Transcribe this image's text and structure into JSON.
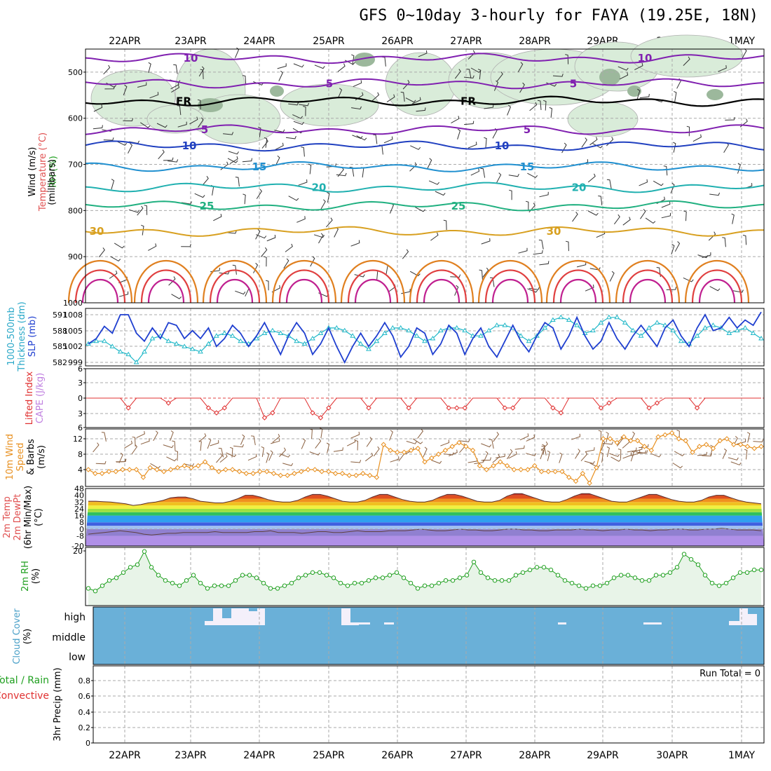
{
  "title": "GFS 0~10day 3-hourly for FAYA (19.25E, 18N)",
  "date_labels": [
    "22APR",
    "23APR",
    "24APR",
    "25APR",
    "26APR",
    "27APR",
    "28APR",
    "29APR",
    "30APR",
    "1MAY"
  ],
  "colors": {
    "rh_fill": "#d9ecd9",
    "rh_dark": "#9cb89c",
    "slp": "#1f3fd0",
    "thickness": "#20b8c8",
    "lifted_index": "#e03030",
    "cape": "#c080e0",
    "wind10m": "#e89020",
    "barbs10m": "#8a6040",
    "temp_max": "#5a3a30",
    "rh2m": "#20a020",
    "rh2m_fill": "#e8f4e8",
    "cloud": "#6ab0d8",
    "cloud_gap": "#f4f0fa",
    "grid": "#aaaaaa"
  },
  "chart_data": [
    {
      "type": "contour",
      "panel": "upper-air",
      "ylabels": [
        "Wind (m/s)",
        "Temperature (°C)",
        "RH (%)",
        "(millibars)"
      ],
      "yticks": [
        500,
        600,
        700,
        800,
        900,
        1000
      ],
      "ylim": [
        1000,
        450
      ],
      "isotherms": [
        {
          "label": "10",
          "value": -10,
          "level": 470,
          "color": "#8020b0"
        },
        {
          "label": "5",
          "value": -5,
          "level": 525,
          "color": "#8020b0"
        },
        {
          "label": "FR",
          "value": 0,
          "level": 563,
          "color": "#000000"
        },
        {
          "label": "5",
          "value": 5,
          "level": 625,
          "color": "#8020b0"
        },
        {
          "label": "10",
          "value": 10,
          "level": 660,
          "color": "#2040c0"
        },
        {
          "label": "15",
          "value": 15,
          "level": 705,
          "color": "#2090d0"
        },
        {
          "label": "20",
          "value": 20,
          "level": 750,
          "color": "#20b0b0"
        },
        {
          "label": "25",
          "value": 25,
          "level": 790,
          "color": "#20b080"
        },
        {
          "label": "30",
          "value": 30,
          "level": 845,
          "color": "#d8a020"
        }
      ]
    },
    {
      "type": "line",
      "panel": "thickness-slp",
      "ylabels": [
        "1000-500mb",
        "Thickness (dm)",
        "SLP (mb)"
      ],
      "left_ticks": [
        "591",
        "588",
        "585",
        "582"
      ],
      "right_ticks": [
        "1008",
        "1005",
        "1002",
        "999"
      ],
      "series": [
        {
          "name": "SLP (mb)",
          "values": [
            1002.5,
            1003.5,
            1005.8,
            1004.5,
            1008,
            1008,
            1004.5,
            1003,
            1005.5,
            1003.5,
            1006.5,
            1006,
            1003.5,
            1005,
            1003.5,
            1005.5,
            1002,
            1003.5,
            1006,
            1004.5,
            1002,
            1004,
            1006.5,
            1003.5,
            1000.5,
            1004,
            1006.5,
            1004.5,
            1000.5,
            1002.5,
            1005.5,
            1002,
            999,
            1002,
            1004.5,
            1002,
            1004,
            1006.5,
            1004,
            1000,
            1002,
            1005.5,
            1004.5,
            1000.5,
            1002.5,
            1006,
            1004.5,
            1000.5,
            1003.5,
            1005.5,
            1002,
            1000,
            1003,
            1006,
            1003,
            1001,
            1004,
            1006.5,
            1005.5,
            1001.5,
            1004,
            1007.5,
            1004,
            1001.5,
            1003,
            1006.5,
            1003.5,
            1001.5,
            1004,
            1006,
            1004,
            1002,
            1005.5,
            1007,
            1004,
            1002,
            1005.5,
            1008,
            1005,
            1005.5,
            1007.5,
            1005.5,
            1007,
            1006,
            1008.5
          ]
        },
        {
          "name": "Thickness (dm)",
          "values": [
            585.5,
            586,
            586,
            585,
            584,
            583.5,
            582,
            584,
            586.5,
            587,
            586,
            585.5,
            585,
            584.5,
            584,
            585.5,
            587,
            587.5,
            587,
            586,
            585.5,
            586.5,
            587.5,
            588,
            587.5,
            587,
            586,
            585.5,
            586.5,
            587.5,
            588.5,
            588.5,
            588,
            587,
            585.5,
            584.5,
            586,
            587.5,
            588.5,
            588.5,
            588,
            587,
            586,
            586.5,
            588,
            588.5,
            588.5,
            588,
            587,
            587,
            588,
            589,
            589,
            588.5,
            587,
            586,
            587,
            588.5,
            590,
            590.5,
            590,
            589,
            587.5,
            588,
            589.5,
            590.5,
            590.5,
            589.5,
            588,
            587,
            588.5,
            589.5,
            589,
            588,
            586,
            585.5,
            587,
            588.5,
            589,
            588.5,
            587.5,
            588,
            588.5,
            587.5,
            586.5
          ]
        }
      ]
    },
    {
      "type": "line",
      "panel": "stability",
      "ylabels": [
        "Lifted Index",
        "CAPE (J/kg)"
      ],
      "left_ticks": [
        "6",
        "3",
        "0",
        "3",
        "6"
      ],
      "series": [
        {
          "name": "Lifted Index",
          "values": [
            6,
            6,
            6,
            6,
            6,
            4,
            6,
            6,
            6,
            6,
            5,
            6,
            6,
            6,
            6,
            4,
            3,
            4,
            6,
            6,
            6,
            6,
            2,
            3,
            6,
            6,
            6,
            6,
            3,
            2,
            4,
            6,
            6,
            6,
            6,
            4,
            6,
            6,
            6,
            6,
            4,
            6,
            6,
            6,
            6,
            4,
            4,
            4,
            6,
            6,
            6,
            6,
            4,
            4,
            6,
            6,
            6,
            6,
            4,
            3,
            6,
            6,
            6,
            6,
            4,
            5,
            6,
            6,
            6,
            6,
            4,
            5,
            6,
            6,
            6,
            6,
            4,
            6,
            6,
            6,
            6,
            6,
            6,
            6,
            6
          ]
        }
      ]
    },
    {
      "type": "line",
      "panel": "wind10m",
      "ylabels": [
        "10m Wind",
        "Speed",
        "& Barbs",
        "(m/s)"
      ],
      "left_ticks": [
        "12",
        "8",
        "4"
      ],
      "series": [
        {
          "name": "10m Wind Speed",
          "values": [
            4,
            3,
            3,
            3.5,
            3.5,
            4,
            4,
            4,
            2,
            4.5,
            4,
            3.5,
            4,
            4.5,
            5,
            4.5,
            5,
            6,
            4.5,
            3.5,
            4,
            4,
            3.5,
            3,
            3,
            3.5,
            3.5,
            3,
            2.5,
            2.5,
            3,
            3.5,
            4,
            4,
            3.5,
            3.5,
            3,
            3,
            2.5,
            2.5,
            3,
            2.5,
            2,
            10.5,
            9,
            8.5,
            8.5,
            9,
            9.5,
            6,
            7,
            8,
            9,
            10,
            11,
            10,
            9,
            5,
            4,
            5,
            6,
            5,
            4,
            4,
            4,
            5,
            3.5,
            3.5,
            3.5,
            3.5,
            2,
            1,
            3,
            0.5,
            4.5,
            12,
            12,
            11,
            12.5,
            11.5,
            11.5,
            10,
            9,
            12.5,
            13,
            13.5,
            12,
            11.5,
            8.5,
            10,
            10.5,
            9.5,
            11.5,
            12,
            10.5,
            10.5,
            10,
            9.5,
            10
          ]
        }
      ]
    },
    {
      "type": "area",
      "panel": "temperature",
      "ylabels": [
        "2m Temp",
        "2m DewPt",
        "(6hr Min/Max)",
        "(°C)"
      ],
      "left_ticks": [
        "48",
        "40",
        "32",
        "24",
        "16",
        "8",
        "0",
        "-8",
        "-20"
      ],
      "series": [
        {
          "name": "2m Temp",
          "values": [
            33,
            33,
            32.5,
            32,
            31,
            30,
            28,
            29,
            31,
            32,
            34,
            37,
            38,
            38,
            36,
            33,
            32,
            31,
            31,
            33,
            36,
            40,
            40,
            38,
            35,
            33,
            32,
            32,
            34,
            38,
            41,
            41,
            39,
            36,
            33,
            32,
            32,
            34,
            38,
            41,
            41,
            38,
            35,
            33,
            32,
            32,
            34,
            38,
            41,
            41,
            39,
            36,
            33,
            32,
            32,
            34,
            39,
            42,
            42,
            39,
            36,
            33,
            32,
            32,
            35,
            39,
            42,
            42,
            39,
            36,
            33,
            32,
            32,
            35,
            38,
            41,
            41,
            38,
            35,
            33,
            32,
            32,
            34,
            38,
            40,
            40,
            37,
            34,
            32,
            31,
            30
          ]
        },
        {
          "name": "2m DewPt",
          "values": [
            -6,
            -5,
            -4,
            -3,
            -2,
            -3,
            -4,
            -6,
            -7,
            -6,
            -5,
            -5,
            -4,
            -4,
            -4,
            -4,
            -3,
            -4,
            -4,
            -4,
            -4,
            -3,
            -3,
            -2,
            -4,
            -4,
            -4,
            -5,
            -4,
            -3,
            -3,
            -4,
            -4,
            -3,
            -2,
            -3,
            -3,
            -3,
            -2,
            -2,
            -2,
            -1,
            0,
            -1,
            -2,
            -2,
            -1,
            0,
            -1,
            -1,
            -2,
            -2,
            -1,
            0,
            0,
            -1,
            -1,
            -2,
            -2,
            -1,
            -1,
            -1,
            0,
            -1,
            -1,
            -2,
            -1,
            -1,
            0,
            -1,
            -1,
            -2,
            -1,
            -1,
            0,
            0,
            -1,
            -1,
            0,
            0,
            1,
            0,
            -1,
            -1,
            -1,
            -2
          ]
        }
      ]
    },
    {
      "type": "line",
      "panel": "rh2m",
      "ylabels": [
        "2m RH",
        "(%)"
      ],
      "left_ticks": [
        "20"
      ],
      "series": [
        {
          "name": "2m RH",
          "values": [
            6,
            5,
            7,
            9,
            10,
            12,
            14,
            15,
            20,
            14,
            11,
            9,
            8,
            7,
            9,
            11,
            8,
            6,
            7,
            7,
            7,
            9,
            11,
            11,
            10,
            8,
            6,
            6,
            7,
            8,
            10,
            11,
            12,
            12,
            11,
            10,
            8,
            7,
            8,
            8,
            9,
            10,
            10,
            11,
            12,
            10,
            8,
            6,
            7,
            7,
            8,
            9,
            9,
            10,
            11,
            16,
            12,
            10,
            9,
            9,
            9,
            11,
            12,
            13,
            14,
            14,
            13,
            11,
            9,
            8,
            7,
            6,
            7,
            7,
            8,
            10,
            11,
            11,
            10,
            9,
            9,
            11,
            11,
            12,
            14,
            19,
            17,
            15,
            11,
            8,
            7,
            8,
            10,
            12,
            12,
            13,
            13
          ]
        }
      ]
    },
    {
      "type": "heatmap",
      "panel": "cloud-cover",
      "ylabels": [
        "Cloud Cover",
        "(%)"
      ],
      "rows": [
        "high",
        "middle",
        "low"
      ]
    },
    {
      "type": "bar",
      "panel": "precip",
      "ylabels": [
        "3hr Precip (mm)"
      ],
      "legend": [
        "Total / Rain",
        "Convective"
      ],
      "annotation": "Run Total = 0",
      "left_ticks": [
        "0.8",
        "0.6",
        "0.4",
        "0.2",
        "0"
      ],
      "ylim": [
        0,
        0.9
      ],
      "values": []
    }
  ]
}
